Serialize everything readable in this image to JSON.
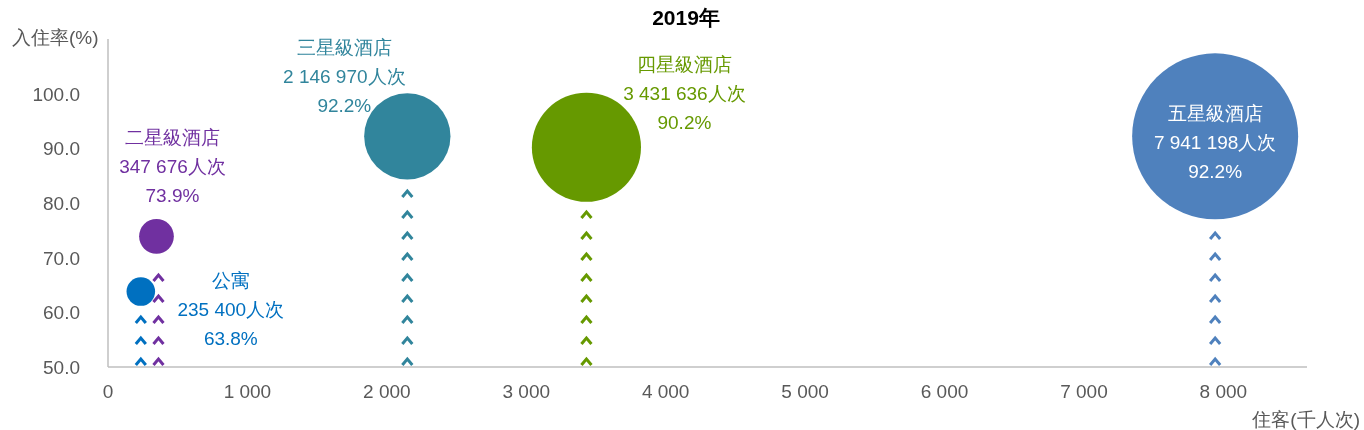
{
  "chart_data": {
    "type": "bubble",
    "title": "2019年",
    "xlabel": "住客(千人次)",
    "ylabel": "入住率(%)",
    "xlim": [
      0,
      8600
    ],
    "ylim": [
      50,
      110
    ],
    "xticks": [
      0,
      {
        "value": 1000,
        "label": "1 000"
      },
      {
        "value": 2000,
        "label": "2 000"
      },
      {
        "value": 3000,
        "label": "3 000"
      },
      {
        "value": 4000,
        "label": "4 000"
      },
      {
        "value": 5000,
        "label": "5 000"
      },
      {
        "value": 6000,
        "label": "6 000"
      },
      {
        "value": 7000,
        "label": "7 000"
      },
      {
        "value": 8000,
        "label": "8 000"
      }
    ],
    "yticks": [
      {
        "value": 50,
        "label": "50.0"
      },
      {
        "value": 60,
        "label": "60.0"
      },
      {
        "value": 70,
        "label": "70.0"
      },
      {
        "value": 80,
        "label": "80.0"
      },
      {
        "value": 90,
        "label": "90.0"
      },
      {
        "value": 100,
        "label": "100.0"
      }
    ],
    "series": [
      {
        "name": "公寓",
        "color": "#0070c0",
        "x": [
          235.4
        ],
        "values": [
          63.8
        ],
        "sizes": [
          0.0296
        ]
      },
      {
        "name": "二星級酒店",
        "color": "#7030a0",
        "x": [
          347.676
        ],
        "values": [
          73.9
        ],
        "sizes": [
          0.0438
        ]
      },
      {
        "name": "三星級酒店",
        "color": "#31859c",
        "x": [
          2146.97
        ],
        "values": [
          92.2
        ],
        "sizes": [
          0.2704
        ]
      },
      {
        "name": "四星級酒店",
        "color": "#669900",
        "x": [
          3431.636
        ],
        "values": [
          90.2
        ],
        "sizes": [
          0.4321
        ]
      },
      {
        "name": "五星級酒店",
        "color": "#4f81bd",
        "x": [
          7941.198
        ],
        "values": [
          92.2
        ],
        "sizes": [
          1
        ]
      }
    ],
    "annotations": [
      "235 400人次",
      "63.8%",
      "347 676人次",
      "73.9%",
      "2 146 970人次",
      "92.2%",
      "3 431 636人次",
      "90.2%",
      "7 941 198人次",
      "92.2%"
    ]
  }
}
